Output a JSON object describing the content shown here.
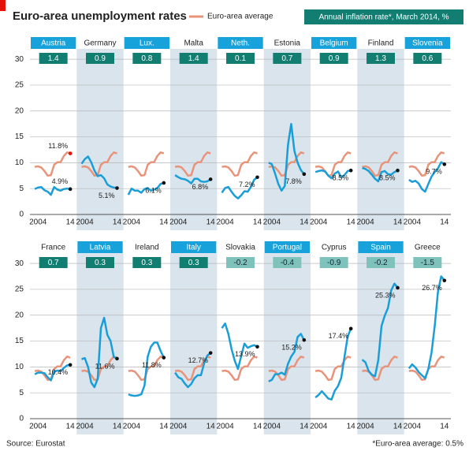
{
  "chart_data": {
    "type": "line",
    "title": "Euro-area unemployment rates",
    "inflation_title": "Annual inflation rate*, March 2014, %",
    "source": "Source: Eurostat",
    "footnote": "*Euro-area average: 0.5%",
    "x": [
      2003,
      2004,
      2005,
      2006,
      2007,
      2008,
      2009,
      2010,
      2011,
      2012,
      2013,
      2014
    ],
    "xlim": [
      2001.5,
      2016
    ],
    "xticks": [
      2004,
      {
        "value": 2014,
        "label": "14"
      }
    ],
    "ylim": [
      0,
      32
    ],
    "yticks": [
      0,
      5,
      10,
      15,
      20,
      25,
      30
    ],
    "grid": true,
    "country_color": "#1a9ed8",
    "average": {
      "name": "Euro-area average",
      "color": "#e8937a",
      "values": [
        9.2,
        9.3,
        9.1,
        8.4,
        7.5,
        7.6,
        9.6,
        10.1,
        10.1,
        11.3,
        12.0,
        11.8
      ],
      "end_label": "11.8%"
    },
    "panels": [
      {
        "name": "Austria",
        "inflation": 1.4,
        "values": [
          4.9,
          5.2,
          5.3,
          4.7,
          4.4,
          3.8,
          5.3,
          4.8,
          4.6,
          4.9,
          5.0,
          4.9
        ],
        "end_label": "4.9%"
      },
      {
        "name": "Germany",
        "inflation": 0.9,
        "values": [
          9.8,
          10.7,
          11.2,
          10.1,
          8.5,
          7.4,
          7.6,
          7.0,
          5.8,
          5.4,
          5.2,
          5.1
        ],
        "end_label": "5.1%"
      },
      {
        "name": "Lux.",
        "inflation": 0.8,
        "values": [
          3.8,
          5.0,
          4.6,
          4.6,
          4.2,
          4.9,
          5.1,
          4.6,
          4.8,
          5.1,
          5.9,
          6.1
        ],
        "end_label": "6.1%"
      },
      {
        "name": "Malta",
        "inflation": 1.4,
        "values": [
          7.6,
          7.2,
          6.9,
          6.8,
          6.5,
          6.0,
          6.9,
          6.9,
          6.4,
          6.3,
          6.4,
          6.8
        ],
        "end_label": "6.8%"
      },
      {
        "name": "Neth.",
        "inflation": 0.1,
        "values": [
          4.2,
          5.1,
          5.3,
          4.4,
          3.6,
          3.1,
          3.7,
          4.5,
          4.4,
          5.3,
          6.7,
          7.2
        ],
        "end_label": "7.2%"
      },
      {
        "name": "Estonia",
        "inflation": 0.7,
        "values": [
          10.0,
          9.7,
          7.9,
          5.9,
          4.6,
          5.5,
          13.5,
          17.5,
          12.3,
          10.0,
          8.6,
          7.8
        ],
        "end_label": "7.8%"
      },
      {
        "name": "Belgium",
        "inflation": 0.9,
        "values": [
          8.2,
          8.4,
          8.5,
          8.3,
          7.5,
          7.0,
          7.9,
          8.3,
          7.2,
          7.6,
          8.4,
          8.5
        ],
        "end_label": "8.5%"
      },
      {
        "name": "Finland",
        "inflation": 1.3,
        "values": [
          9.0,
          8.8,
          8.4,
          7.7,
          6.9,
          6.4,
          8.2,
          8.4,
          7.8,
          7.7,
          8.2,
          8.5
        ],
        "end_label": "8.5%"
      },
      {
        "name": "Slovenia",
        "inflation": 0.6,
        "values": [
          6.7,
          6.3,
          6.5,
          6.0,
          4.9,
          4.4,
          5.9,
          7.3,
          8.2,
          8.9,
          10.1,
          9.7
        ],
        "end_label": "9.7%"
      },
      {
        "name": "France",
        "inflation": 0.7,
        "values": [
          8.6,
          8.9,
          8.9,
          8.8,
          8.0,
          7.4,
          9.1,
          9.3,
          9.2,
          9.8,
          10.3,
          10.4
        ],
        "end_label": "10.4%"
      },
      {
        "name": "Latvia",
        "inflation": 0.3,
        "values": [
          11.5,
          11.7,
          10.0,
          7.0,
          6.1,
          7.7,
          17.5,
          19.5,
          16.2,
          15.0,
          11.9,
          11.6
        ],
        "end_label": "11.6%"
      },
      {
        "name": "Ireland",
        "inflation": 0.3,
        "values": [
          4.7,
          4.5,
          4.4,
          4.5,
          4.7,
          6.4,
          12.0,
          13.9,
          14.7,
          14.7,
          13.1,
          11.8
        ],
        "end_label": "11.8%"
      },
      {
        "name": "Italy",
        "inflation": 0.3,
        "values": [
          8.9,
          8.0,
          7.7,
          6.8,
          6.1,
          6.7,
          7.8,
          8.4,
          8.4,
          10.7,
          12.2,
          12.7
        ],
        "end_label": "12.7%"
      },
      {
        "name": "Slovakia",
        "inflation": -0.2,
        "values": [
          17.5,
          18.4,
          16.4,
          13.5,
          11.2,
          9.6,
          12.1,
          14.5,
          13.7,
          14.0,
          14.2,
          13.9
        ],
        "end_label": "13.9%"
      },
      {
        "name": "Portugal",
        "inflation": -0.4,
        "values": [
          7.2,
          7.5,
          8.6,
          8.6,
          8.9,
          8.5,
          10.6,
          12.0,
          12.9,
          15.8,
          16.4,
          15.2
        ],
        "end_label": "15.2%"
      },
      {
        "name": "Cyprus",
        "inflation": -0.9,
        "values": [
          4.1,
          4.6,
          5.3,
          4.6,
          3.9,
          3.7,
          5.4,
          6.3,
          7.9,
          11.9,
          15.9,
          17.4
        ],
        "end_label": "17.4%"
      },
      {
        "name": "Spain",
        "inflation": -0.2,
        "values": [
          11.4,
          10.9,
          9.2,
          8.5,
          8.2,
          11.3,
          17.9,
          19.9,
          21.4,
          24.8,
          26.1,
          25.3
        ],
        "end_label": "25.3%"
      },
      {
        "name": "Greece",
        "inflation": -1.5,
        "values": [
          9.7,
          10.5,
          9.9,
          9.0,
          8.4,
          7.8,
          9.6,
          12.7,
          17.9,
          24.5,
          27.5,
          26.7
        ],
        "end_label": "26.7%"
      }
    ]
  }
}
